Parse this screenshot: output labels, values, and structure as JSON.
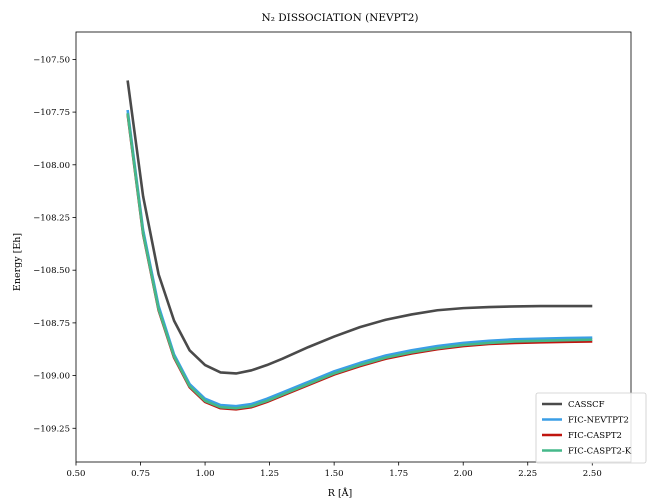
{
  "chart_data": {
    "type": "line",
    "title": "N₂ DISSOCIATION (NEVPT2)",
    "xlabel": "R [Å]",
    "ylabel": "Energy [Eh]",
    "xlim": [
      0.5,
      2.65
    ],
    "ylim": [
      -109.41,
      -107.37
    ],
    "x_ticks": [
      0.5,
      0.75,
      1.0,
      1.25,
      1.5,
      1.75,
      2.0,
      2.25,
      2.5
    ],
    "x_tick_labels": [
      "0.50",
      "0.75",
      "1.00",
      "1.25",
      "1.50",
      "1.75",
      "2.00",
      "2.25",
      "2.50"
    ],
    "y_ticks": [
      -107.5,
      -107.75,
      -108.0,
      -108.25,
      -108.5,
      -108.75,
      -109.0,
      -109.25
    ],
    "y_tick_labels": [
      "−107.50",
      "−107.75",
      "−108.00",
      "−108.25",
      "−108.50",
      "−108.75",
      "−109.00",
      "−109.25"
    ],
    "grid": false,
    "legend_position": "bottom-right",
    "x": [
      0.7,
      0.76,
      0.82,
      0.88,
      0.94,
      1.0,
      1.06,
      1.12,
      1.18,
      1.24,
      1.3,
      1.4,
      1.5,
      1.6,
      1.7,
      1.8,
      1.9,
      2.0,
      2.1,
      2.2,
      2.3,
      2.4,
      2.5
    ],
    "series": [
      {
        "name": "CASSCF",
        "color": "#4a4a4a",
        "values": [
          -107.6,
          -108.15,
          -108.52,
          -108.74,
          -108.88,
          -108.95,
          -108.985,
          -108.99,
          -108.975,
          -108.95,
          -108.92,
          -108.865,
          -108.815,
          -108.77,
          -108.735,
          -108.71,
          -108.69,
          -108.68,
          -108.675,
          -108.672,
          -108.67,
          -108.67,
          -108.67
        ]
      },
      {
        "name": "FIC-NEVTPT2",
        "color": "#3a9ee6",
        "values": [
          -107.74,
          -108.31,
          -108.67,
          -108.9,
          -109.04,
          -109.11,
          -109.14,
          -109.145,
          -109.135,
          -109.11,
          -109.08,
          -109.03,
          -108.98,
          -108.94,
          -108.905,
          -108.88,
          -108.86,
          -108.845,
          -108.835,
          -108.828,
          -108.825,
          -108.822,
          -108.82
        ]
      },
      {
        "name": "FIC-CASPT2",
        "color": "#c0150f",
        "values": [
          -107.76,
          -108.33,
          -108.69,
          -108.915,
          -109.055,
          -109.125,
          -109.155,
          -109.16,
          -109.15,
          -109.125,
          -109.095,
          -109.045,
          -108.995,
          -108.955,
          -108.92,
          -108.895,
          -108.875,
          -108.86,
          -108.85,
          -108.845,
          -108.842,
          -108.84,
          -108.838
        ]
      },
      {
        "name": "FIC-CASPT2-K",
        "color": "#45b88a",
        "values": [
          -107.755,
          -108.325,
          -108.685,
          -108.91,
          -109.05,
          -109.12,
          -109.15,
          -109.155,
          -109.145,
          -109.12,
          -109.09,
          -109.04,
          -108.99,
          -108.95,
          -108.915,
          -108.89,
          -108.87,
          -108.855,
          -108.845,
          -108.838,
          -108.835,
          -108.832,
          -108.83
        ]
      }
    ]
  }
}
